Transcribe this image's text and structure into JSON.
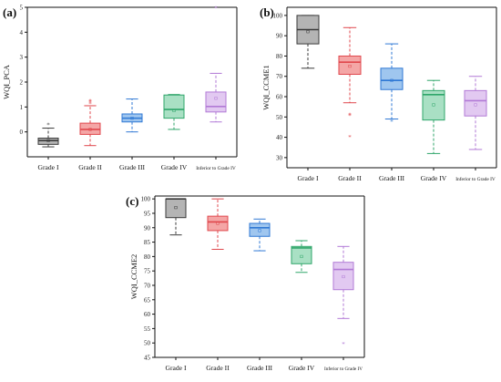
{
  "chart_data": [
    {
      "type": "box",
      "panel_label": "(a)",
      "ylabel": "WQI_PCA",
      "ylim": [
        -1,
        5
      ],
      "yticks": [
        0,
        1,
        2,
        3,
        4,
        5
      ],
      "categories": [
        "Grade I",
        "Grade II",
        "Grade III",
        "Grade IV",
        "Inferior to Grade IV"
      ],
      "boxes": [
        {
          "min": -0.6,
          "q1": -0.5,
          "median": -0.35,
          "q3": -0.25,
          "max": 0.15,
          "mean": -0.35,
          "outliers": [
            0.28
          ]
        },
        {
          "min": -0.55,
          "q1": -0.1,
          "median": 0.1,
          "q3": 0.35,
          "max": 1.05,
          "mean": 0.1,
          "outliers": [
            1.12,
            1.18,
            1.22
          ]
        },
        {
          "min": 0.0,
          "q1": 0.4,
          "median": 0.55,
          "q3": 0.72,
          "max": 1.32,
          "mean": 0.55,
          "outliers": []
        },
        {
          "min": 0.1,
          "q1": 0.55,
          "median": 0.9,
          "q3": 1.48,
          "max": 1.5,
          "mean": 0.85,
          "outliers": []
        },
        {
          "min": 0.4,
          "q1": 0.8,
          "median": 1.02,
          "q3": 1.6,
          "max": 2.35,
          "mean": 1.35,
          "outliers": [
            4.95
          ]
        }
      ]
    },
    {
      "type": "box",
      "panel_label": "(b)",
      "ylabel": "WQI_CCME1",
      "ylim": [
        25,
        105
      ],
      "yticks": [
        30,
        40,
        50,
        60,
        70,
        80,
        90,
        100
      ],
      "categories": [
        "Grade I",
        "Grade II",
        "Grade III",
        "Grade IV",
        "Inferior to Grade IV"
      ],
      "boxes": [
        {
          "min": 74,
          "q1": 86,
          "median": 93,
          "q3": 100,
          "max": 100,
          "mean": 92,
          "outliers": []
        },
        {
          "min": 57,
          "q1": 71,
          "median": 77,
          "q3": 80,
          "max": 94,
          "mean": 75,
          "outliers": [
            51,
            50.5,
            40
          ]
        },
        {
          "min": 49,
          "q1": 63.5,
          "median": 68,
          "q3": 74,
          "max": 86,
          "mean": 68,
          "outliers": [
            47.5
          ]
        },
        {
          "min": 32,
          "q1": 48.5,
          "median": 61,
          "q3": 63,
          "max": 68,
          "mean": 56,
          "outliers": []
        },
        {
          "min": 34,
          "q1": 50.5,
          "median": 58,
          "q3": 63,
          "max": 70,
          "mean": 56,
          "outliers": []
        }
      ]
    },
    {
      "type": "box",
      "panel_label": "(c)",
      "ylabel": "WQI_CCME2",
      "ylim": [
        45,
        100
      ],
      "yticks": [
        45,
        50,
        55,
        60,
        65,
        70,
        75,
        80,
        85,
        90,
        95,
        100
      ],
      "categories": [
        "Grade I",
        "Grade II",
        "Grade III",
        "Grade IV",
        "Inferior to Grade IV"
      ],
      "boxes": [
        {
          "min": 87.5,
          "q1": 93.5,
          "median": 100,
          "q3": 100,
          "max": 100,
          "mean": 97,
          "outliers": []
        },
        {
          "min": 82.5,
          "q1": 89,
          "median": 92,
          "q3": 94,
          "max": 100,
          "mean": 91.5,
          "outliers": []
        },
        {
          "min": 82,
          "q1": 87,
          "median": 90,
          "q3": 91.5,
          "max": 93,
          "mean": 89,
          "outliers": []
        },
        {
          "min": 74.5,
          "q1": 77.5,
          "median": 83,
          "q3": 83.5,
          "max": 85.5,
          "mean": 80,
          "outliers": []
        },
        {
          "min": 58.5,
          "q1": 68.5,
          "median": 75.5,
          "q3": 78,
          "max": 83.5,
          "mean": 73,
          "outliers": [
            49.5
          ]
        }
      ]
    }
  ],
  "colors": {
    "grade_1": {
      "fill": "#b4b4b4",
      "stroke": "#3a3a3a"
    },
    "grade_2": {
      "fill": "#f4a6a6",
      "stroke": "#e0474c"
    },
    "grade_3": {
      "fill": "#9fc6ef",
      "stroke": "#2f78d4"
    },
    "grade_4": {
      "fill": "#a9e0c4",
      "stroke": "#2fa66a"
    },
    "grade_5": {
      "fill": "#e2c9f1",
      "stroke": "#b27ad6"
    }
  }
}
